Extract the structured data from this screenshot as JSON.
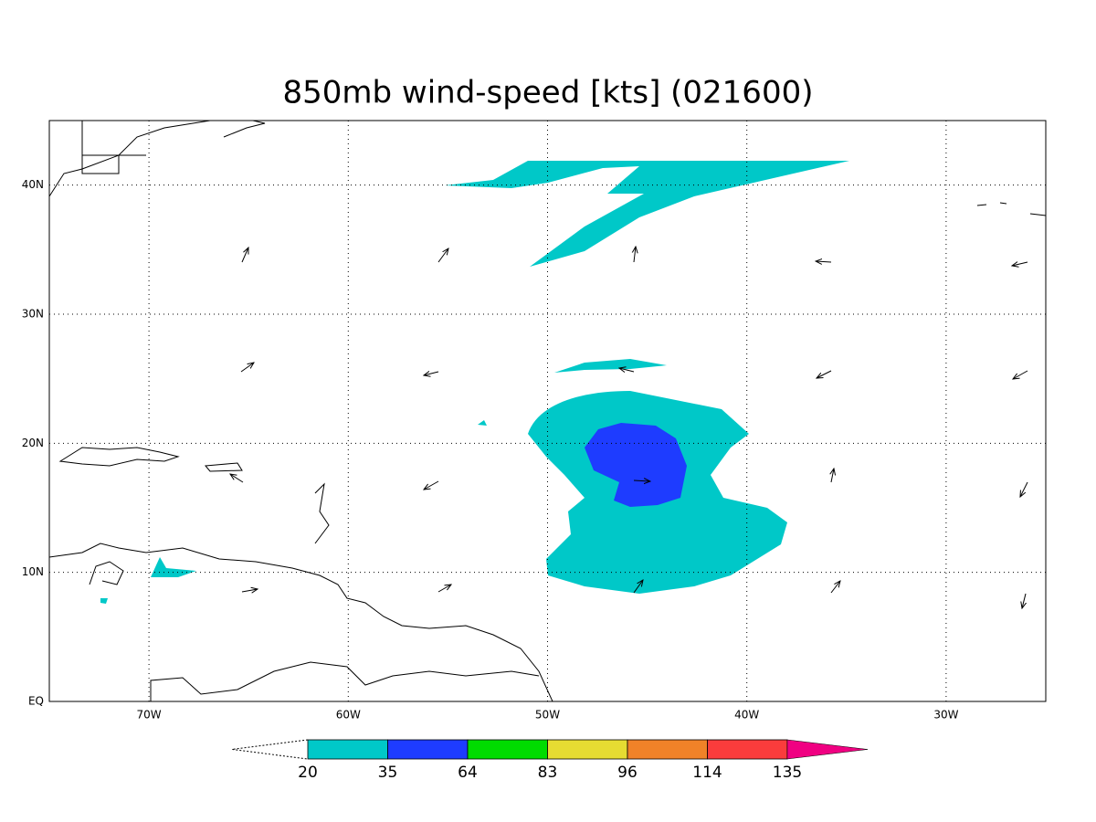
{
  "title": "850mb wind-speed [kts] (021600)",
  "map": {
    "xlim": [
      -75,
      -25
    ],
    "ylim": [
      0,
      45
    ],
    "xticks": [
      {
        "value": -70,
        "label": "70W"
      },
      {
        "value": -60,
        "label": "60W"
      },
      {
        "value": -50,
        "label": "50W"
      },
      {
        "value": -40,
        "label": "40W"
      },
      {
        "value": -30,
        "label": "30W"
      }
    ],
    "yticks": [
      {
        "value": 0,
        "label": "EQ"
      },
      {
        "value": 10,
        "label": "10N"
      },
      {
        "value": 20,
        "label": "20N"
      },
      {
        "value": 30,
        "label": "30N"
      },
      {
        "value": 40,
        "label": "40N"
      }
    ],
    "grid": true
  },
  "colorbar": {
    "levels": [
      20,
      35,
      64,
      83,
      96,
      114,
      135
    ],
    "colors": [
      "#00c8c8",
      "#1e3cff",
      "#00dc00",
      "#e6dc32",
      "#f08228",
      "#fa3c3c",
      "#f00082"
    ]
  }
}
